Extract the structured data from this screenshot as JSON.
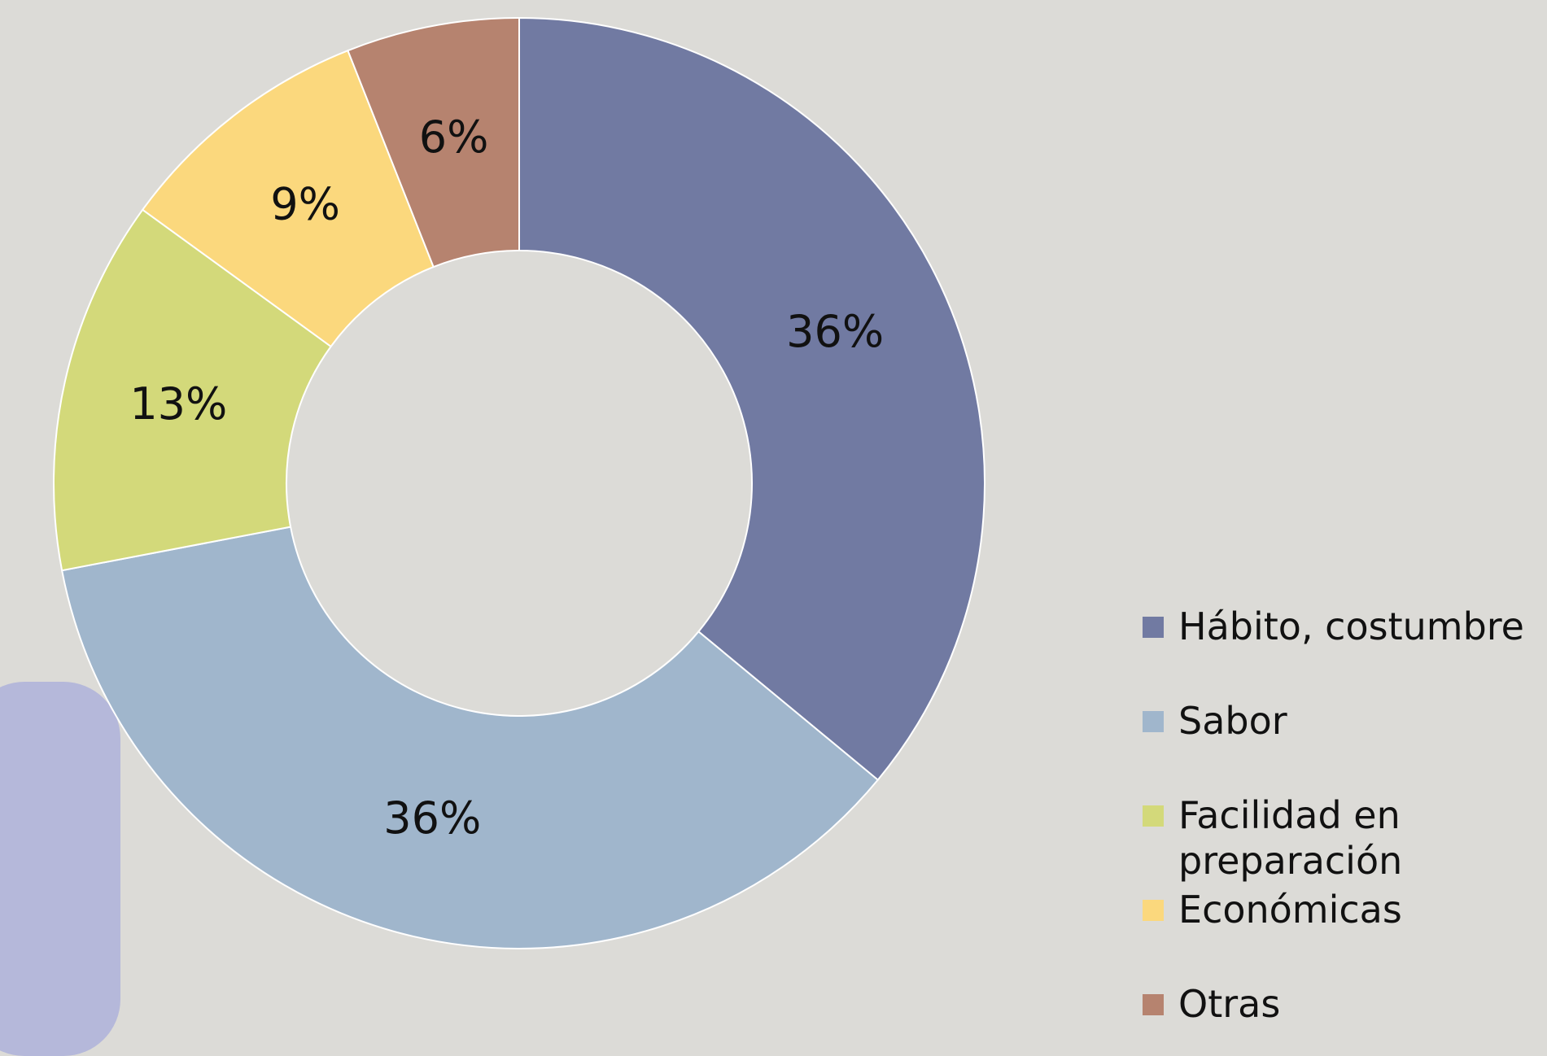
{
  "chart_data": {
    "type": "donut",
    "categories": [
      "Hábito, costumbre",
      "Sabor",
      "Facilidad en preparación",
      "Económicas",
      "Otras"
    ],
    "values": [
      36,
      36,
      13,
      9,
      6
    ],
    "value_labels": [
      "36%",
      "36%",
      "13%",
      "9%",
      "6%"
    ],
    "colors": [
      "#717aa2",
      "#a0b6cc",
      "#d3d97a",
      "#fbd87d",
      "#b6836f"
    ],
    "legend": "right"
  }
}
